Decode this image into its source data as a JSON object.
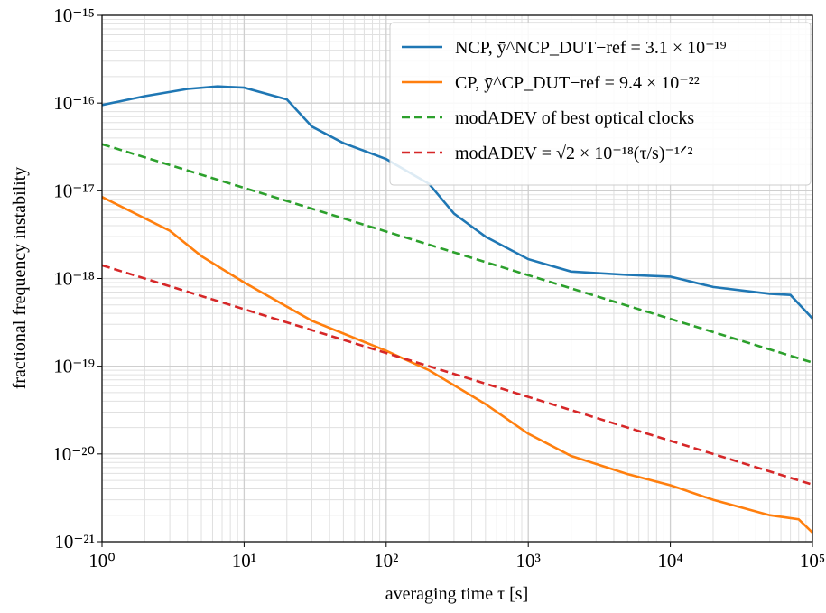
{
  "chart_data": {
    "type": "line",
    "xlabel": "averaging time τ [s]",
    "ylabel": "fractional frequency instability",
    "xscale": "log",
    "yscale": "log",
    "grid": true,
    "minor_grid": true,
    "legend": "upper right",
    "xlim": [
      1,
      100000
    ],
    "ylim": [
      1e-21,
      1e-15
    ],
    "xticks": [
      {
        "value": 1,
        "label": "10⁰"
      },
      {
        "value": 10,
        "label": "10¹"
      },
      {
        "value": 100,
        "label": "10²"
      },
      {
        "value": 1000,
        "label": "10³"
      },
      {
        "value": 10000,
        "label": "10⁴"
      },
      {
        "value": 100000,
        "label": "10⁵"
      }
    ],
    "yticks": [
      {
        "value": 1e-21,
        "label": "10⁻²¹"
      },
      {
        "value": 1e-20,
        "label": "10⁻²⁰"
      },
      {
        "value": 1e-19,
        "label": "10⁻¹⁹"
      },
      {
        "value": 1e-18,
        "label": "10⁻¹⁸"
      },
      {
        "value": 1e-17,
        "label": "10⁻¹⁷"
      },
      {
        "value": 1e-16,
        "label": "10⁻¹⁶"
      },
      {
        "value": 1e-15,
        "label": "10⁻¹⁵"
      }
    ],
    "series": [
      {
        "name": "NCP, ȳ^NCP_DUT−ref = 3.1 × 10⁻¹⁹",
        "color": "#1f77b4",
        "dashed": false,
        "x": [
          1,
          2,
          4,
          6.5,
          10,
          20,
          30,
          50,
          100,
          200,
          300,
          500,
          1000,
          2000,
          5000,
          10000,
          20000,
          50000,
          70000,
          100000
        ],
        "values": [
          9.5e-17,
          1.2e-16,
          1.45e-16,
          1.55e-16,
          1.5e-16,
          1.1e-16,
          5.4e-17,
          3.5e-17,
          2.3e-17,
          1.2e-17,
          5.5e-18,
          3e-18,
          1.66e-18,
          1.2e-18,
          1.1e-18,
          1.05e-18,
          8e-19,
          6.7e-19,
          6.5e-19,
          3.5e-19
        ]
      },
      {
        "name": "CP, ȳ^CP_DUT−ref = 9.4 × 10⁻²²",
        "color": "#ff7f0e",
        "dashed": false,
        "x": [
          1,
          3,
          5,
          10,
          30,
          100,
          200,
          500,
          1000,
          2000,
          5000,
          10000,
          20000,
          50000,
          80000,
          100000
        ],
        "values": [
          8.5e-18,
          3.5e-18,
          1.8e-18,
          9e-19,
          3.3e-19,
          1.5e-19,
          9e-20,
          3.7e-20,
          1.7e-20,
          9.5e-21,
          5.9e-21,
          4.4e-21,
          3e-21,
          2e-21,
          1.8e-21,
          1.27e-21
        ]
      },
      {
        "name": "modADEV of best optical clocks",
        "color": "#2ca02c",
        "dashed": true,
        "x": [
          1,
          100000
        ],
        "values": [
          3.4e-17,
          1.1e-19
        ]
      },
      {
        "name": "modADEV = √2 × 10⁻¹⁸(τ/s)⁻¹ᐟ²",
        "color": "#d62728",
        "dashed": true,
        "x": [
          1,
          100000
        ],
        "values": [
          1.414e-18,
          4.47e-21
        ]
      }
    ]
  }
}
